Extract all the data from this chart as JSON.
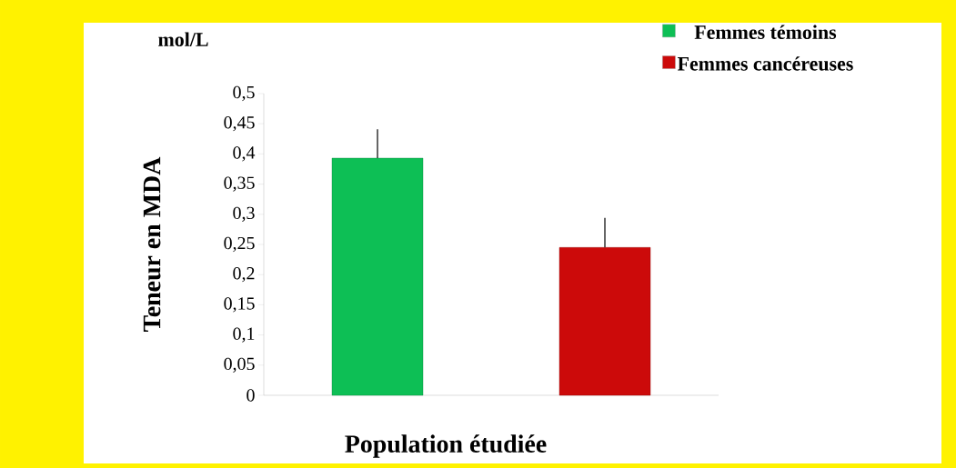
{
  "chart_data": {
    "type": "bar",
    "categories": [
      null,
      null
    ],
    "series": [
      {
        "name": "Femmes témoins",
        "color": "#0dbf55",
        "values": [
          0.393,
          null
        ],
        "errors": [
          0.048,
          null
        ]
      },
      {
        "name": "Femmes cancéreuses",
        "color": "#cc0a0a",
        "values": [
          null,
          0.245
        ],
        "errors": [
          null,
          0.049
        ]
      }
    ],
    "xlabel": "Population étudiée",
    "ylabel": "Teneur en MDA",
    "annotations": [
      "mol/L"
    ],
    "ylim": [
      0,
      0.5
    ],
    "yticks": [
      0,
      {
        "value": 0.05,
        "label": "0,05"
      },
      {
        "value": 0.1,
        "label": "0,1"
      },
      {
        "value": 0.15,
        "label": "0,15"
      },
      {
        "value": 0.2,
        "label": "0,2"
      },
      {
        "value": 0.25,
        "label": "0,25"
      },
      {
        "value": 0.3,
        "label": "0,3"
      },
      {
        "value": 0.35,
        "label": "0,35"
      },
      {
        "value": 0.4,
        "label": "0,4"
      },
      {
        "value": 0.45,
        "label": "0,45"
      },
      {
        "value": 0.5,
        "label": "0,5"
      }
    ],
    "legend": "top right",
    "grid": false
  }
}
